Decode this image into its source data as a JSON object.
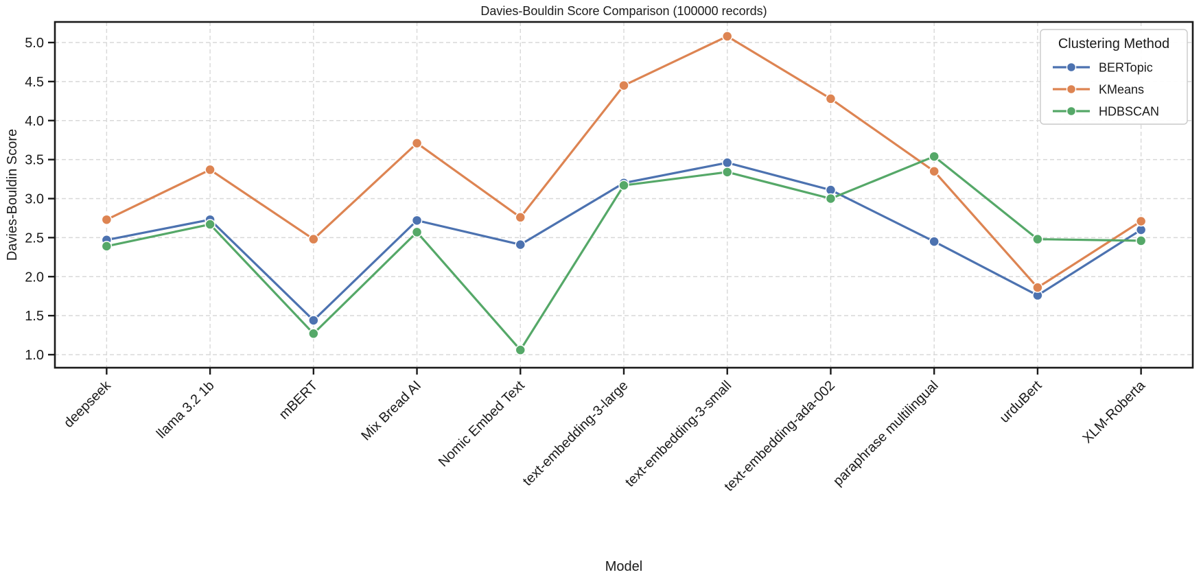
{
  "figure": {
    "title": "Davies-Bouldin Score Comparison (100000 records)"
  },
  "chart_data": {
    "type": "line",
    "title": "Davies-Bouldin Score Comparison (100000 records)",
    "xlabel": "Model",
    "ylabel": "Davies-Bouldin Score",
    "categories": [
      "deepseek",
      "llama 3.2 1b",
      "mBERT",
      "Mix Bread AI",
      "Nomic Embed Text",
      "text-embedding-3-large",
      "text-embedding-3-small",
      "text-embedding-ada-002",
      "paraphrase multilingual",
      "urduBert",
      "XLM-Roberta"
    ],
    "series": [
      {
        "name": "BERTopic",
        "color": "#4C72B0",
        "values": [
          2.47,
          2.73,
          1.44,
          2.72,
          2.41,
          3.2,
          3.46,
          3.11,
          2.45,
          1.76,
          2.6
        ]
      },
      {
        "name": "KMeans",
        "color": "#DD8452",
        "values": [
          2.73,
          3.37,
          2.48,
          3.71,
          2.76,
          4.45,
          5.08,
          4.28,
          3.35,
          1.86,
          2.71
        ]
      },
      {
        "name": "HDBSCAN",
        "color": "#55A868",
        "values": [
          2.39,
          2.67,
          1.27,
          2.57,
          1.06,
          3.17,
          3.34,
          3.0,
          3.54,
          2.48,
          2.46
        ]
      }
    ],
    "legend": {
      "title": "Clustering Method",
      "position": "upper right"
    },
    "y_ticks": [
      1.0,
      1.5,
      2.0,
      2.5,
      3.0,
      3.5,
      4.0,
      4.5,
      5.0
    ],
    "ylim": [
      0.83,
      5.27
    ],
    "grid": {
      "visible": true,
      "style": "dashed",
      "color": "#d8d8d8"
    },
    "style": {
      "spine_color": "#1a1a1a",
      "text_color": "#1a1a1a",
      "marker_edge": "#ffffff",
      "legend_border": "#c9c9c9",
      "background": "#ffffff"
    }
  }
}
